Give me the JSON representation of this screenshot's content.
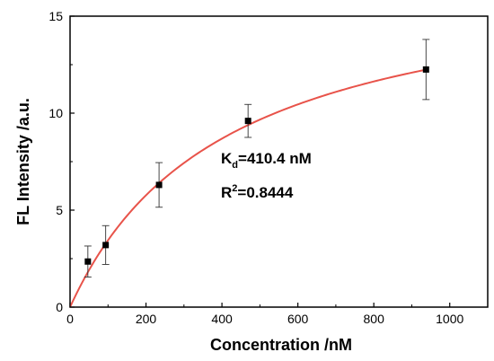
{
  "chart_data": {
    "type": "scatter",
    "title": "",
    "xlabel": "Concentration /nM",
    "ylabel": "FL Intensity /a.u.",
    "xlim": [
      0,
      1100
    ],
    "ylim": [
      0,
      15
    ],
    "xticks": [
      0,
      200,
      400,
      600,
      800,
      1000
    ],
    "yticks": [
      0,
      5,
      10,
      15
    ],
    "grid": false,
    "legend": "none",
    "series": [
      {
        "type": "scatter",
        "marker": "square",
        "color": "#000000",
        "x": [
          46.9,
          93.8,
          234.4,
          468.8,
          937.5
        ],
        "y": [
          2.35,
          3.2,
          6.3,
          9.6,
          12.25
        ],
        "error": [
          0.8,
          1.0,
          1.15,
          0.85,
          1.55
        ]
      },
      {
        "type": "line",
        "color": "#e8534a",
        "model": "one-site binding: y = Bmax*x/(Kd + x)",
        "params": {
          "Bmax": 17.6,
          "Kd": 410.4
        },
        "x_range": [
          0,
          940
        ]
      }
    ],
    "annotations": {
      "kd_main": "K",
      "kd_sub": "d",
      "kd_value": "=410.4 nM",
      "r2_main": "R",
      "r2_sup": "2",
      "r2_value": "=0.8444"
    }
  }
}
